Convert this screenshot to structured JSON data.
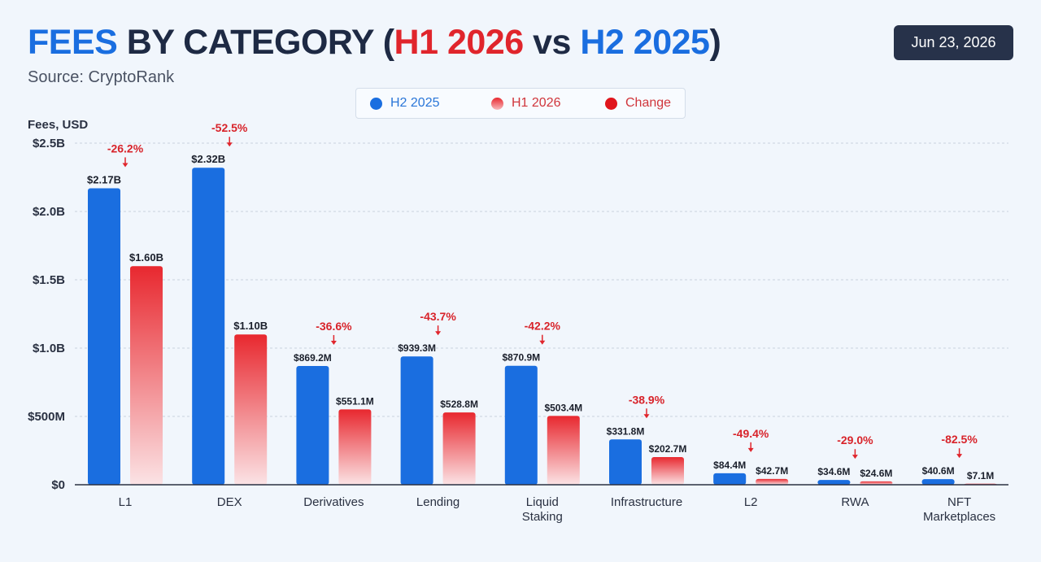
{
  "header": {
    "title_parts": [
      {
        "text": "FEES",
        "tone": "blue"
      },
      {
        "text": " BY CATEGORY (",
        "tone": "dark"
      },
      {
        "text": "H1 2026",
        "tone": "red"
      },
      {
        "text": " vs ",
        "tone": "dark"
      },
      {
        "text": "H2 2025",
        "tone": "blue"
      },
      {
        "text": ")",
        "tone": "dark"
      }
    ],
    "source": "Source: CryptoRank",
    "date": "Jun 23, 2026"
  },
  "colors": {
    "h2_2025": "#1a6ee0",
    "h1_2026_top": "#e8282f",
    "h1_2026_bottom": "#fbe3e5",
    "change": "#e0252c"
  },
  "legend": [
    {
      "label": "H2 2025",
      "color": "#1a6ee0",
      "text_color": "#2a76d8"
    },
    {
      "label": "H1 2026",
      "color": "#f08a8e",
      "text_color": "#d0353b"
    },
    {
      "label": "Change",
      "color": "#e0151c",
      "text_color": "#d0353b"
    }
  ],
  "chart_data": {
    "type": "bar",
    "ylabel": "Fees, USD",
    "ylim": [
      0,
      2500000000
    ],
    "y_ticks": [
      {
        "value": 0,
        "label": "$0"
      },
      {
        "value": 500000000,
        "label": "$500M"
      },
      {
        "value": 1000000000,
        "label": "$1.0B"
      },
      {
        "value": 1500000000,
        "label": "$1.5B"
      },
      {
        "value": 2000000000,
        "label": "$2.0B"
      },
      {
        "value": 2500000000,
        "label": "$2.5B"
      }
    ],
    "grid": true,
    "categories": [
      [
        "L1"
      ],
      [
        "DEX"
      ],
      [
        "Derivatives"
      ],
      [
        "Lending"
      ],
      [
        "Liquid",
        "Staking"
      ],
      [
        "Infrastructure"
      ],
      [
        "L2"
      ],
      [
        "RWA"
      ],
      [
        "NFT",
        "Marketplaces"
      ]
    ],
    "series": [
      {
        "name": "H2 2025",
        "values": [
          2170000000,
          2320000000,
          869200000,
          939300000,
          870900000,
          331800000,
          84400000,
          34600000,
          40600000
        ],
        "labels": [
          "$2.17B",
          "$2.32B",
          "$869.2M",
          "$939.3M",
          "$870.9M",
          "$331.8M",
          "$84.4M",
          "$34.6M",
          "$40.6M"
        ]
      },
      {
        "name": "H1 2026",
        "values": [
          1600000000,
          1100000000,
          551100000,
          528800000,
          503400000,
          202700000,
          42700000,
          24600000,
          7100000
        ],
        "labels": [
          "$1.60B",
          "$1.10B",
          "$551.1M",
          "$528.8M",
          "$503.4M",
          "$202.7M",
          "$42.7M",
          "$24.6M",
          "$7.1M"
        ]
      }
    ],
    "change": [
      "-26.2%",
      "-52.5%",
      "-36.6%",
      "-43.7%",
      "-42.2%",
      "-38.9%",
      "-49.4%",
      "-29.0%",
      "-82.5%"
    ]
  }
}
